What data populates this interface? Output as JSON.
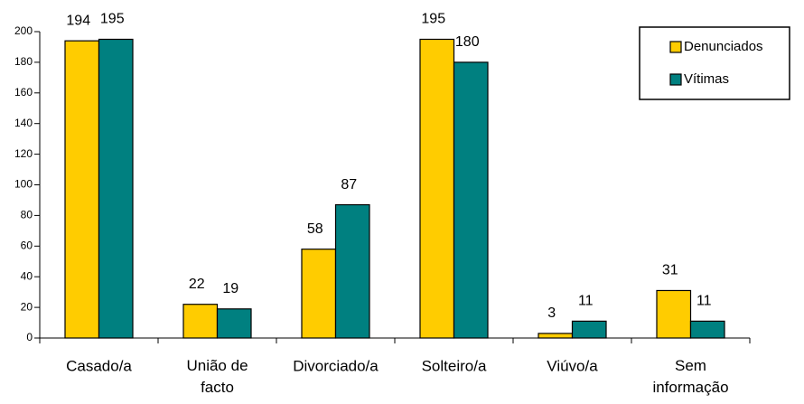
{
  "chart_data": {
    "type": "bar",
    "categories": [
      "Casado/a",
      "União de facto",
      "Divorciado/a",
      "Solteiro/a",
      "Viúvo/a",
      "Sem informação"
    ],
    "series": [
      {
        "name": "Denunciados",
        "color": "#FFCC00",
        "values": [
          194,
          22,
          58,
          195,
          3,
          31
        ]
      },
      {
        "name": "Vítimas",
        "color": "#008080",
        "values": [
          195,
          19,
          87,
          180,
          11,
          11
        ]
      }
    ],
    "ylim": [
      0,
      200
    ],
    "yticks": [
      0,
      20,
      40,
      60,
      80,
      100,
      120,
      140,
      160,
      180,
      200
    ],
    "legend": "top-right"
  }
}
